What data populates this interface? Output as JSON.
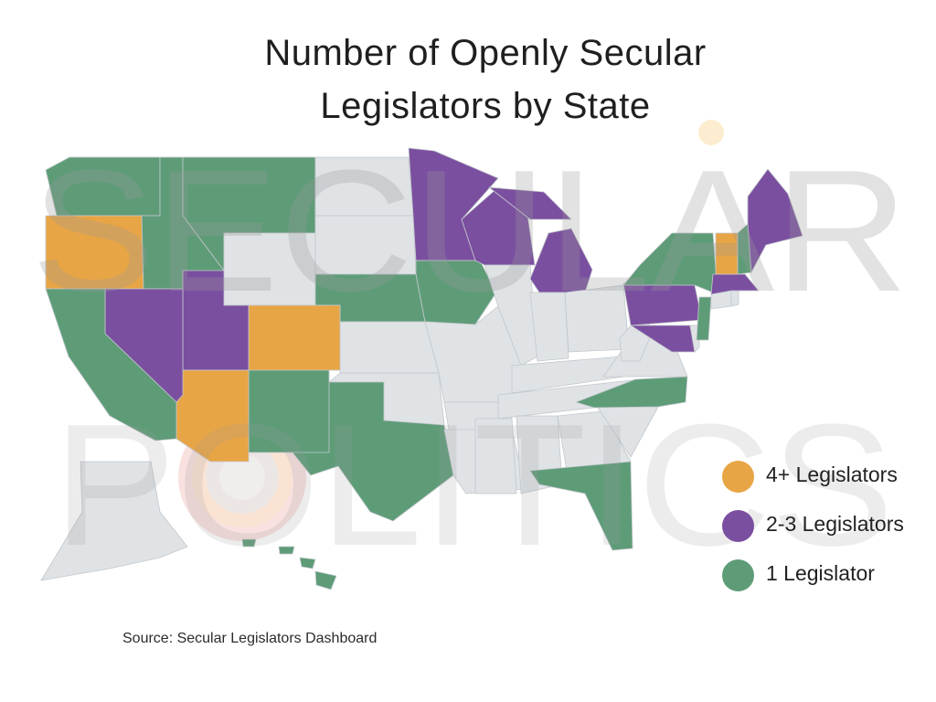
{
  "title": {
    "line1": "Number of Openly Secular",
    "line2": "Legislators by State"
  },
  "watermark": {
    "line1": "SECULAR",
    "line2": "POLITICS"
  },
  "source": "Source: Secular Legislators Dashboard",
  "colors": {
    "four_plus": "#e8a545",
    "two_three": "#7b4fa0",
    "one": "#5e9c78",
    "none": "#dfe3e6",
    "border": "#c3c8cc",
    "watermark": "#9a9a9a"
  },
  "legend": [
    {
      "key": "four_plus",
      "label": "4+ Legislators"
    },
    {
      "key": "two_three",
      "label": "2-3 Legislators"
    },
    {
      "key": "one",
      "label": " 1 Legislator"
    }
  ],
  "states": {
    "four_plus": [
      "OR",
      "CO",
      "AZ",
      "VT"
    ],
    "two_three": [
      "NV",
      "UT",
      "MN",
      "WI",
      "MI",
      "PA",
      "MD",
      "ME",
      "MA"
    ],
    "one": [
      "WA",
      "ID",
      "MT",
      "CA",
      "NM",
      "TX",
      "NE",
      "IA",
      "NY",
      "NJ",
      "NH",
      "NC",
      "FL",
      "HI"
    ],
    "none": [
      "WY",
      "ND",
      "SD",
      "KS",
      "OK",
      "MO",
      "AR",
      "LA",
      "MS",
      "AL",
      "GA",
      "SC",
      "TN",
      "KY",
      "IL",
      "IN",
      "OH",
      "WV",
      "VA",
      "DE",
      "CT",
      "RI",
      "AK"
    ]
  }
}
